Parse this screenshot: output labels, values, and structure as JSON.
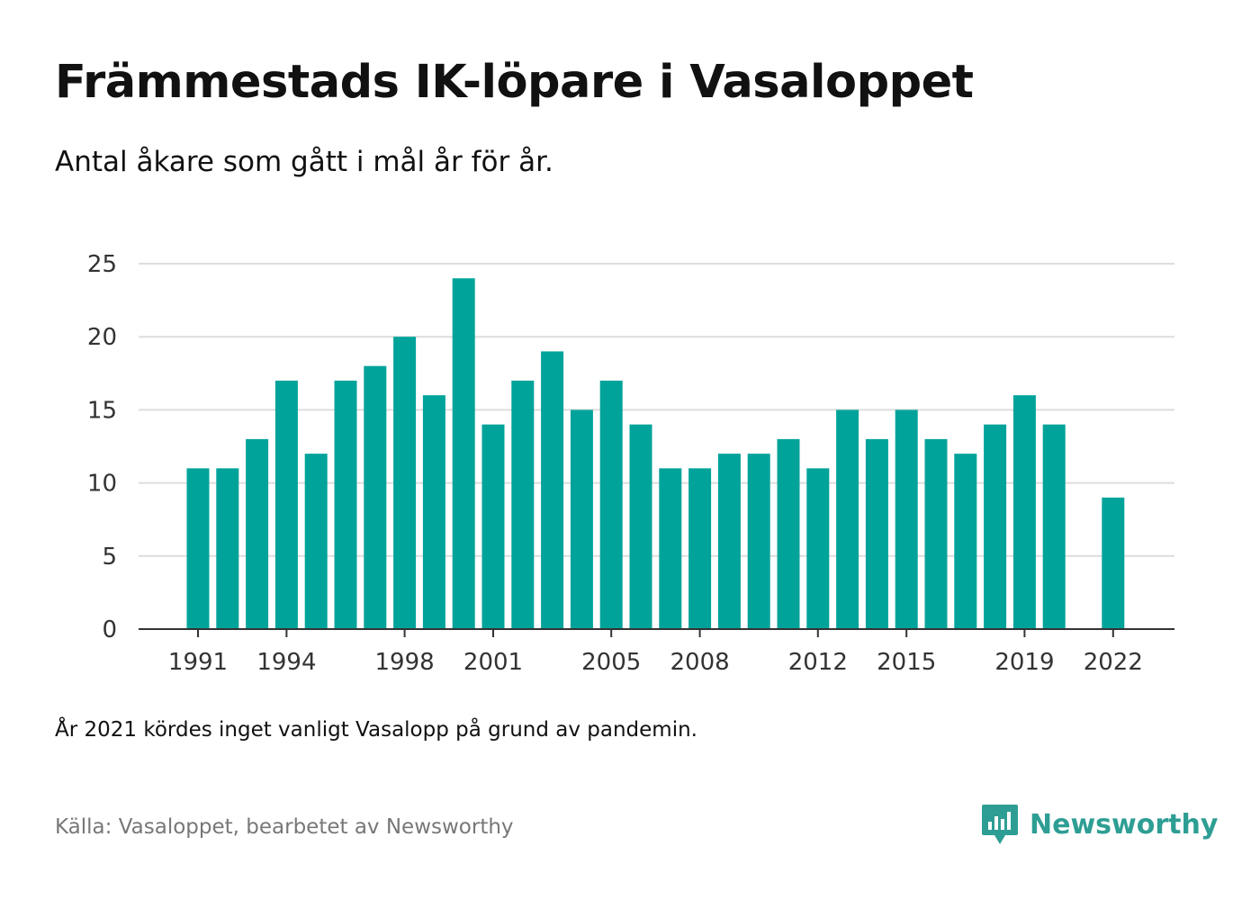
{
  "title": "Främmestads IK-löpare i Vasaloppet",
  "subtitle": "Antal åkare som gått i mål år för år.",
  "note": "År 2021 kördes inget vanligt Vasalopp på grund av pandemin.",
  "source": "Källa: Vasaloppet, bearbetet av Newsworthy",
  "brand": {
    "name": "Newsworthy",
    "logo_icon": "newsworthy-chart-bubble-icon"
  },
  "colors": {
    "bar": "#00a39a",
    "grid": "#dddddd",
    "axis": "#333333",
    "brand": "#2e9e94",
    "source": "#777777"
  },
  "chart_data": {
    "type": "bar",
    "x": [
      1991,
      1992,
      1993,
      1994,
      1995,
      1996,
      1997,
      1998,
      1999,
      2000,
      2001,
      2002,
      2003,
      2004,
      2005,
      2006,
      2007,
      2008,
      2009,
      2010,
      2011,
      2012,
      2013,
      2014,
      2015,
      2016,
      2017,
      2018,
      2019,
      2020,
      2021,
      2022
    ],
    "values": [
      11,
      11,
      13,
      17,
      12,
      17,
      18,
      20,
      16,
      24,
      14,
      17,
      19,
      15,
      17,
      14,
      11,
      11,
      12,
      12,
      13,
      11,
      15,
      13,
      15,
      13,
      12,
      14,
      16,
      14,
      null,
      9
    ],
    "x_ticks": [
      "1991",
      "1994",
      "1998",
      "2001",
      "2005",
      "2008",
      "2012",
      "2015",
      "2019",
      "2022"
    ],
    "y_ticks": [
      "0",
      "5",
      "10",
      "15",
      "20",
      "25"
    ],
    "ylim": [
      0,
      25
    ],
    "grid": true,
    "legend": "none"
  }
}
